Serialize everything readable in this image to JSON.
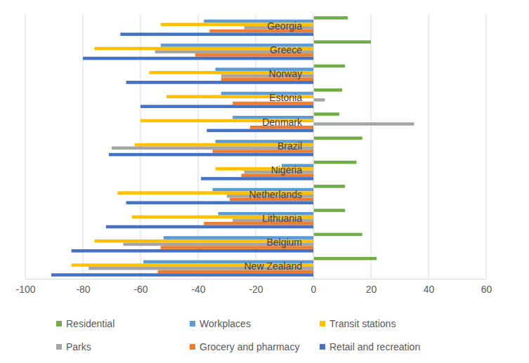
{
  "chart_data": {
    "type": "bar",
    "orientation": "horizontal",
    "categories": [
      "Georgia",
      "Greece",
      "Norway",
      "Estonia",
      "Denmark",
      "Brazil",
      "Nigeria",
      "Netherlands",
      "Lithuania",
      "Belgium",
      "New Zealand"
    ],
    "series": [
      {
        "name": "Residential",
        "color": "#70ad47",
        "values": [
          12,
          20,
          11,
          10,
          9,
          17,
          15,
          11,
          11,
          17,
          22
        ]
      },
      {
        "name": "Workplaces",
        "color": "#5b9bd5",
        "values": [
          -38,
          -53,
          -34,
          -32,
          -28,
          -34,
          -11,
          -35,
          -33,
          -52,
          -59
        ]
      },
      {
        "name": "Transit stations",
        "color": "#ffc000",
        "values": [
          -53,
          -76,
          -57,
          -51,
          -60,
          -62,
          -34,
          -68,
          -63,
          -76,
          -84
        ]
      },
      {
        "name": "Parks",
        "color": "#a5a5a5",
        "values": [
          -24,
          -55,
          -32,
          4,
          35,
          -70,
          -24,
          -30,
          -28,
          -66,
          -78
        ]
      },
      {
        "name": "Grocery and pharmacy",
        "color": "#ed7d31",
        "values": [
          -36,
          -41,
          -32,
          -28,
          -22,
          -35,
          -25,
          -29,
          -38,
          -53,
          -54
        ]
      },
      {
        "name": "Retail and recreation",
        "color": "#4472c4",
        "values": [
          -67,
          -80,
          -65,
          -60,
          -37,
          -71,
          -39,
          -65,
          -72,
          -84,
          -91
        ]
      }
    ],
    "xlim": [
      -100,
      60
    ],
    "xticks": [
      -100,
      -80,
      -60,
      -40,
      -20,
      0,
      20,
      40,
      60
    ],
    "grid": true,
    "legend": "bottom"
  }
}
